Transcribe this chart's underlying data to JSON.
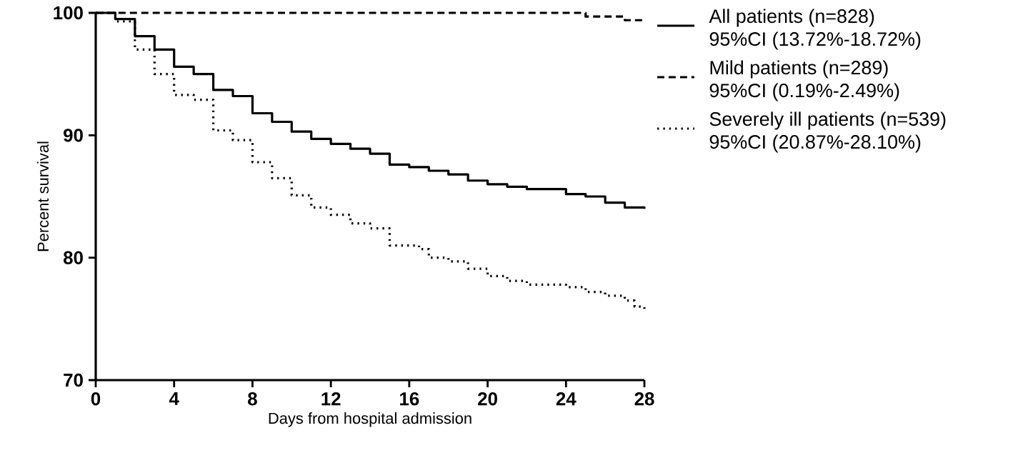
{
  "chart_data": {
    "type": "step",
    "xlabel": "Days from hospital admission",
    "ylabel": "Percent survival",
    "xlim": [
      0,
      28
    ],
    "ylim": [
      70,
      100
    ],
    "xticks": [
      0,
      4,
      8,
      12,
      16,
      20,
      24,
      28
    ],
    "yticks": [
      70,
      80,
      90,
      100
    ],
    "annotations": [
      "95%CI (13.72%-18.72%)",
      "95%CI (0.19%-2.49%)",
      "95%CI (20.87%-28.10%)"
    ],
    "grid": false,
    "legend": "right",
    "marker": "none",
    "series": [
      {
        "name": "All patients (n=828)",
        "color": "#000000",
        "line_style": "solid",
        "x": [
          0,
          1,
          2,
          3,
          4,
          5,
          6,
          7,
          8,
          9,
          10,
          11,
          12,
          13,
          14,
          15,
          16,
          17,
          18,
          19,
          20,
          21,
          22,
          24,
          25,
          26,
          27,
          28
        ],
        "values": [
          100,
          99.5,
          98.1,
          97.0,
          95.6,
          95.0,
          93.7,
          93.2,
          91.8,
          91.1,
          90.3,
          89.7,
          89.3,
          88.9,
          88.5,
          87.6,
          87.4,
          87.1,
          86.8,
          86.3,
          86.0,
          85.8,
          85.6,
          85.2,
          85.0,
          84.5,
          84.1,
          84.0
        ]
      },
      {
        "name": "Mild patients (n=289)",
        "color": "#000000",
        "line_style": "dashed",
        "x": [
          0,
          25,
          27,
          28
        ],
        "values": [
          100,
          99.7,
          99.4,
          99.4
        ]
      },
      {
        "name": "Severely ill patients (n=539)",
        "color": "#000000",
        "line_style": "dotted",
        "x": [
          0,
          1,
          2,
          3,
          4,
          5,
          6,
          7,
          8,
          9,
          10,
          11,
          12,
          13,
          14,
          15,
          16.5,
          17,
          18,
          19,
          20,
          21,
          22,
          24,
          25,
          26,
          27,
          27.5,
          28
        ],
        "values": [
          100,
          99.3,
          97.0,
          95.0,
          93.3,
          92.9,
          90.4,
          89.6,
          87.8,
          86.5,
          85.1,
          84.1,
          83.5,
          82.8,
          82.4,
          81.0,
          80.7,
          80.0,
          79.7,
          79.1,
          78.5,
          78.1,
          77.8,
          77.6,
          77.2,
          76.9,
          76.5,
          76.0,
          75.8
        ]
      }
    ]
  }
}
